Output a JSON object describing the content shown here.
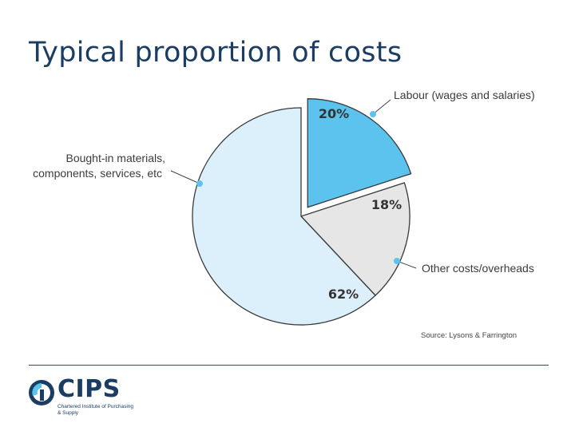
{
  "title": "Typical proportion of costs",
  "chart_data": {
    "type": "pie",
    "slices": [
      {
        "label": "Labour (wages and salaries)",
        "value": 20,
        "value_label": "20%",
        "color": "#5bc3ee",
        "exploded": true
      },
      {
        "label": "Other costs/overheads",
        "value": 18,
        "value_label": "18%",
        "color": "#e6e6e6",
        "exploded": false
      },
      {
        "label": "Bought-in materials, components, services, etc",
        "value": 62,
        "value_label": "62%",
        "color": "#dcf0fb",
        "exploded": false
      }
    ],
    "label_lines": {
      "bought_in": [
        "Bought-in materials,",
        "components, services, etc"
      ]
    },
    "source": "Source: Lysons & Farrington",
    "legend": "none (leader-line callouts)"
  },
  "footer": {
    "logo_text": "CIPS",
    "logo_subtitle": "Chartered Institute of Purchasing & Supply",
    "colors": {
      "brand": "#1b3d63",
      "accent": "#5bc3ee"
    }
  }
}
